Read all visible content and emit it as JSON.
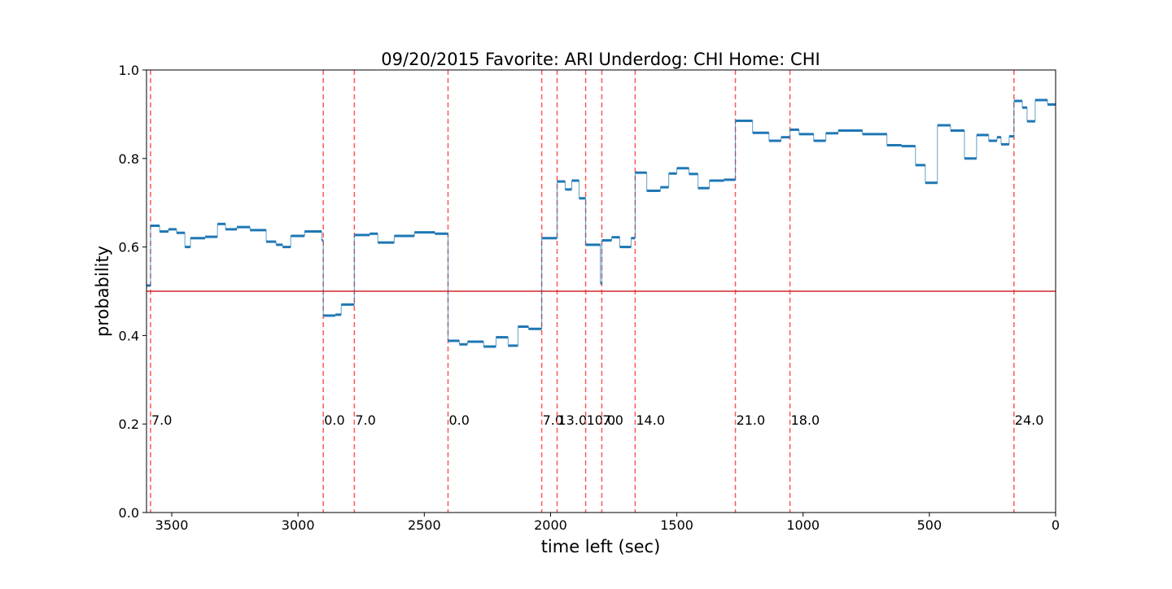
{
  "chart_data": {
    "type": "step",
    "title": "09/20/2015 Favorite: ARI Underdog: CHI Home: CHI",
    "x_label": "time left (sec)",
    "y_label": "probability",
    "xlim": [
      3600,
      0
    ],
    "ylim": [
      0,
      1
    ],
    "xticks": [
      3500,
      3000,
      2500,
      2000,
      1500,
      1000,
      500,
      0
    ],
    "yticks": [
      {
        "value": 0,
        "label": "0.0"
      },
      0.2,
      0.4,
      0.6,
      0.8,
      {
        "value": 1,
        "label": "1.0"
      }
    ],
    "series": [
      {
        "color": "#1f77b4",
        "x": [
          3600,
          3584,
          3548,
          3513,
          3481,
          3448,
          3426,
          3368,
          3319,
          3287,
          3242,
          3190,
          3126,
          3087,
          3061,
          3029,
          2974,
          2906,
          2900,
          2852,
          2829,
          2777,
          2716,
          2684,
          2619,
          2539,
          2458,
          2406,
          2361,
          2329,
          2265,
          2216,
          2168,
          2129,
          2087,
          2035,
          1974,
          1942,
          1916,
          1887,
          1861,
          1803,
          1797,
          1758,
          1726,
          1681,
          1665,
          1619,
          1565,
          1532,
          1500,
          1452,
          1416,
          1371,
          1313,
          1268,
          1200,
          1135,
          1087,
          1052,
          1016,
          958,
          910,
          861,
          765,
          668,
          610,
          555,
          516,
          468,
          416,
          361,
          313,
          265,
          232,
          216,
          184,
          165,
          132,
          113,
          81,
          32,
          0
        ],
        "values": [
          0.513,
          0.648,
          0.635,
          0.64,
          0.632,
          0.6,
          0.62,
          0.623,
          0.652,
          0.64,
          0.645,
          0.638,
          0.612,
          0.605,
          0.6,
          0.625,
          0.635,
          0.615,
          0.445,
          0.447,
          0.47,
          0.627,
          0.63,
          0.61,
          0.625,
          0.633,
          0.63,
          0.388,
          0.38,
          0.386,
          0.375,
          0.396,
          0.377,
          0.42,
          0.415,
          0.62,
          0.748,
          0.73,
          0.75,
          0.71,
          0.605,
          0.518,
          0.615,
          0.622,
          0.6,
          0.62,
          0.768,
          0.727,
          0.735,
          0.766,
          0.778,
          0.765,
          0.733,
          0.75,
          0.752,
          0.885,
          0.858,
          0.84,
          0.848,
          0.865,
          0.855,
          0.84,
          0.857,
          0.863,
          0.855,
          0.83,
          0.828,
          0.785,
          0.745,
          0.875,
          0.863,
          0.8,
          0.853,
          0.84,
          0.848,
          0.832,
          0.85,
          0.93,
          0.915,
          0.884,
          0.932,
          0.922,
          0.922
        ]
      }
    ],
    "hline": {
      "value": 0.5,
      "color": "#d62728"
    },
    "score_changes": {
      "color": "#ff5555",
      "label_y": 0.21,
      "x": [
        3584,
        2900,
        2777,
        2406,
        2035,
        1974,
        1861,
        1797,
        1665,
        1268,
        1052,
        165
      ],
      "labels": [
        "7.0",
        "0.0",
        "7.0",
        "0.0",
        "7.0",
        "13.0",
        "10.0",
        "7.0",
        "14.0",
        "21.0",
        "18.0",
        "24.0"
      ]
    }
  }
}
